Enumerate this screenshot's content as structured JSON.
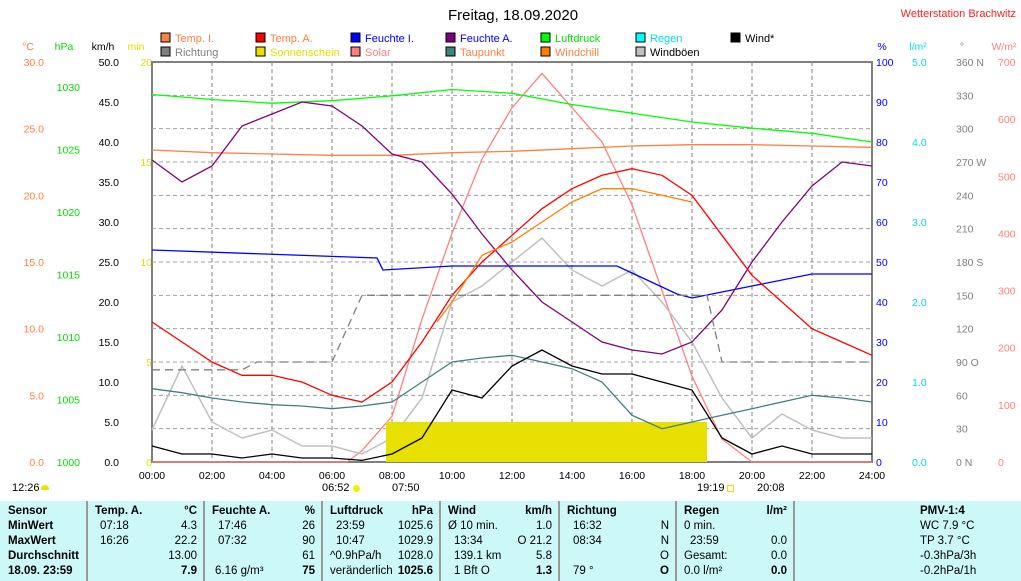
{
  "header": {
    "title": "Freitag, 18.09.2020",
    "station": "Wetterstation Brachwitz"
  },
  "legend": [
    {
      "label": "Temp. I.",
      "color": "#ff8040",
      "text_color": "#ff8040"
    },
    {
      "label": "Temp. A.",
      "color": "#ff0000",
      "text_color": "#ff8040"
    },
    {
      "label": "Feuchte I.",
      "color": "#0000ff",
      "text_color": "#0000ff"
    },
    {
      "label": "Feuchte A.",
      "color": "#800080",
      "text_color": "#0000ff"
    },
    {
      "label": "Luftdruck",
      "color": "#00ff00",
      "text_color": "#00e000"
    },
    {
      "label": "Regen",
      "color": "#00ffff",
      "text_color": "#00e0e0"
    },
    {
      "label": "Wind*",
      "color": "#000000",
      "text_color": "#000000"
    },
    {
      "label": "Richtung",
      "color": "#808080",
      "text_color": "#808080"
    },
    {
      "label": "Sonnenschein",
      "color": "#e8e000",
      "text_color": "#e0e000"
    },
    {
      "label": "Solar",
      "color": "#ff8080",
      "text_color": "#ff8080"
    },
    {
      "label": "Taupunkt",
      "color": "#408080",
      "text_color": "#ff8040"
    },
    {
      "label": "Windchill",
      "color": "#ff8000",
      "text_color": "#ff8040"
    },
    {
      "label": "Windböen",
      "color": "#c0c0c0",
      "text_color": "#000000"
    }
  ],
  "chart_data": {
    "type": "line",
    "title": "Freitag, 18.09.2020",
    "x_ticks": [
      "00:00",
      "02:00",
      "04:00",
      "06:00",
      "08:00",
      "10:00",
      "12:00",
      "14:00",
      "16:00",
      "18:00",
      "20:00",
      "22:00",
      "24:00"
    ],
    "xlim": [
      0,
      24
    ],
    "axes": [
      {
        "unit": "°C",
        "color": "#ff8040",
        "range": [
          0,
          30
        ],
        "ticks": [
          "0.0",
          "5.0",
          "10.0",
          "15.0",
          "20.0",
          "25.0",
          "30.0"
        ]
      },
      {
        "unit": "hPa",
        "color": "#00e000",
        "range": [
          1000,
          1032
        ],
        "ticks": [
          "1000",
          "1005",
          "1010",
          "1015",
          "1020",
          "1025",
          "1030"
        ]
      },
      {
        "unit": "km/h",
        "color": "#000000",
        "range": [
          0,
          50
        ],
        "ticks": [
          "0.0",
          "5.0",
          "10.0",
          "15.0",
          "20.0",
          "25.0",
          "30.0",
          "35.0",
          "40.0",
          "45.0",
          "50.0"
        ]
      },
      {
        "unit": "min",
        "color": "#e0e000",
        "range": [
          0,
          20
        ],
        "ticks": [
          "0",
          "5",
          "10",
          "15",
          "20"
        ]
      },
      {
        "unit": "%",
        "color": "#0000ff",
        "range": [
          0,
          100
        ],
        "ticks": [
          "0",
          "10",
          "20",
          "30",
          "40",
          "50",
          "60",
          "70",
          "80",
          "90",
          "100"
        ]
      },
      {
        "unit": "l/m²",
        "color": "#00e0e0",
        "range": [
          0,
          5
        ],
        "ticks": [
          "0.0",
          "1.0",
          "2.0",
          "3.0",
          "4.0",
          "5.0"
        ]
      },
      {
        "unit": "°",
        "color": "#808080",
        "range": [
          0,
          360
        ],
        "ticks": [
          "0 N",
          "30",
          "60",
          "90 O",
          "120",
          "150",
          "180 S",
          "210",
          "240",
          "270 W",
          "300",
          "330",
          "360 N"
        ]
      },
      {
        "unit": "W/m²",
        "color": "#ff8080",
        "range": [
          0,
          700
        ],
        "ticks": [
          "0",
          "100",
          "200",
          "300",
          "400",
          "500",
          "600",
          "700"
        ]
      }
    ],
    "series": [
      {
        "name": "Solar",
        "axis": 7,
        "color": "#ff8080",
        "x": [
          0,
          6.5,
          7,
          8,
          9,
          10,
          11,
          12,
          13,
          14,
          15,
          16,
          17,
          18,
          19,
          20,
          24
        ],
        "y": [
          0,
          0,
          20,
          80,
          250,
          400,
          530,
          620,
          680,
          620,
          560,
          450,
          300,
          150,
          40,
          0,
          0
        ]
      },
      {
        "name": "Windböen",
        "axis": 2,
        "color": "#c0c0c0",
        "x": [
          0,
          1,
          2,
          3,
          4,
          5,
          6,
          7,
          8,
          9,
          10,
          11,
          12,
          13,
          14,
          15,
          16,
          17,
          18,
          19,
          20,
          21,
          22,
          23,
          24
        ],
        "y": [
          4,
          12,
          5,
          3,
          4,
          2,
          2,
          1,
          3,
          8,
          20,
          22,
          25,
          28,
          24,
          22,
          24,
          20,
          15,
          8,
          3,
          6,
          4,
          3,
          3
        ]
      },
      {
        "name": "Sonnenschein",
        "axis": 3,
        "color": "#e8e000",
        "x": [
          7.8,
          18.5
        ],
        "y": [
          2,
          2
        ]
      },
      {
        "name": "Temp. I.",
        "axis": 0,
        "color": "#ff8040",
        "x": [
          0,
          2,
          4,
          6,
          8,
          10,
          12,
          14,
          16,
          18,
          20,
          22,
          24
        ],
        "y": [
          23.4,
          23.2,
          23.1,
          23.0,
          23.0,
          23.2,
          23.3,
          23.5,
          23.7,
          23.8,
          23.8,
          23.7,
          23.6
        ]
      },
      {
        "name": "Luftdruck",
        "axis": 1,
        "color": "#00ff00",
        "x": [
          0,
          2,
          4,
          6,
          8,
          10,
          12,
          14,
          16,
          18,
          20,
          22,
          24
        ],
        "y": [
          1029.4,
          1029.0,
          1028.7,
          1028.9,
          1029.3,
          1029.8,
          1029.5,
          1028.6,
          1027.9,
          1027.2,
          1026.7,
          1026.3,
          1025.6
        ]
      },
      {
        "name": "Feuchte I.",
        "axis": 4,
        "color": "#0000ff",
        "x": [
          0,
          7.5,
          7.7,
          10,
          15.5,
          17.5,
          18,
          20,
          22,
          24
        ],
        "y": [
          53,
          51,
          48,
          49,
          49,
          42,
          41,
          44,
          47,
          47
        ]
      },
      {
        "name": "Feuchte A.",
        "axis": 4,
        "color": "#800080",
        "x": [
          0,
          1,
          2,
          3,
          4,
          5,
          6,
          7,
          8,
          9,
          10,
          11,
          12,
          13,
          14,
          15,
          16,
          17,
          18,
          19,
          20,
          21,
          22,
          23,
          24
        ],
        "y": [
          75.5,
          70,
          74,
          84,
          87,
          90,
          89,
          84,
          77,
          75,
          67,
          57,
          48,
          40,
          35,
          30,
          28,
          27,
          30,
          38,
          50,
          60,
          69,
          75,
          74
        ]
      },
      {
        "name": "Temp. A.",
        "axis": 0,
        "color": "#ff0000",
        "x": [
          0,
          1,
          2,
          3,
          4,
          5,
          6,
          7,
          8,
          9,
          10,
          11,
          12,
          13,
          14,
          15,
          16,
          17,
          18,
          19,
          20,
          21,
          22,
          23,
          24
        ],
        "y": [
          10.5,
          9,
          7.5,
          6.5,
          6.5,
          6,
          5,
          4.5,
          6,
          9,
          12.5,
          15,
          17,
          19,
          20.5,
          21.5,
          22,
          21.5,
          20,
          17,
          14,
          12,
          10,
          9,
          8
        ]
      },
      {
        "name": "Windchill",
        "axis": 0,
        "color": "#ff8000",
        "x": [
          9.5,
          10,
          11,
          12,
          13,
          14,
          15,
          16,
          17,
          18
        ],
        "y": [
          10.5,
          12,
          15.5,
          16.5,
          18,
          19.5,
          20.5,
          20.5,
          20,
          19.5
        ]
      },
      {
        "name": "Taupunkt",
        "axis": 0,
        "color": "#408080",
        "x": [
          0,
          1,
          2,
          3,
          4,
          5,
          6,
          7,
          8,
          9,
          10,
          11,
          12,
          13,
          14,
          15,
          16,
          17,
          18,
          19,
          20,
          21,
          22,
          23,
          24
        ],
        "y": [
          5.5,
          5.2,
          4.8,
          4.5,
          4.3,
          4.2,
          4.0,
          4.2,
          4.5,
          6,
          7.5,
          7.8,
          8,
          7.5,
          7,
          6,
          3.5,
          2.5,
          3,
          3.5,
          4,
          4.5,
          5,
          4.8,
          4.5
        ]
      },
      {
        "name": "Wind*",
        "axis": 2,
        "color": "#000000",
        "x": [
          0,
          1,
          2,
          3,
          4,
          5,
          6,
          7,
          8,
          9,
          10,
          11,
          12,
          13,
          14,
          15,
          16,
          17,
          18,
          19,
          20,
          21,
          22,
          23,
          24
        ],
        "y": [
          2,
          1,
          1,
          0.5,
          1,
          0.5,
          0.5,
          0.2,
          1,
          3,
          9,
          8,
          12,
          14,
          12,
          11,
          11,
          10,
          9,
          3,
          1,
          2,
          1,
          1,
          1
        ]
      },
      {
        "name": "Richtung",
        "axis": 6,
        "color": "#808080",
        "dashed": true,
        "x": [
          0,
          3,
          3.5,
          6,
          7,
          7.5,
          18.5,
          19,
          24
        ],
        "y": [
          83,
          83,
          90,
          90,
          150,
          150,
          150,
          90,
          90
        ]
      }
    ]
  },
  "astro": {
    "moonset": "12:26",
    "sunrise": "06:52",
    "dawn": "07:50",
    "sunset": "19:19",
    "dusk": "20:08"
  },
  "table": {
    "rows": [
      "Sensor",
      "MinWert",
      "MaxWert",
      "Durchschnitt",
      "18.09. 23:59"
    ],
    "temp": {
      "head": "Temp. A.",
      "unit": "°C",
      "min_t": "07:18",
      "min": "4.3",
      "max_t": "16:26",
      "max": "22.2",
      "avg": "13.00",
      "cur": "7.9"
    },
    "hum": {
      "head": "Feuchte A.",
      "unit": "%",
      "min_t": "17:46",
      "min": "26",
      "max_t": "07:32",
      "max": "90",
      "avg": "61",
      "abs": "6.16 g/m³",
      "cur": "75"
    },
    "press": {
      "head": "Luftdruck",
      "unit": "hPa",
      "min_t": "23:59",
      "min": "1025.6",
      "max_t": "10:47",
      "max": "1029.9",
      "trend": "^0.9hPa/h",
      "avg": "1028.0",
      "desc": "veränderlich",
      "cur": "1025.6"
    },
    "wind": {
      "head": "Wind",
      "unit": "km/h",
      "r1a": "Ø 10 min.",
      "r1b": "1.0",
      "r2a": "13:34",
      "r2b": "O 21.2",
      "r3a": "139.1 km",
      "r3b": "5.8",
      "r4a": "1 Bft O",
      "r4b": "1.3"
    },
    "dir": {
      "head": "Richtung",
      "r1a": "16:32",
      "r1b": "N",
      "r2a": "08:34",
      "r2b": "N",
      "r3b": "O",
      "r4a": "79 °",
      "r4b": "O"
    },
    "rain": {
      "head": "Regen",
      "unit": "l/m²",
      "r1a": "0 min.",
      "r2a": "23:59",
      "r2b": "0.0",
      "r3a": "Gesamt:",
      "r3b": "0.0",
      "r4a": "0.0 l/m²",
      "r4b": "0.0"
    },
    "pmv": {
      "head": "PMV-1:4",
      "r1": "WC 7.9 °C",
      "r2": "TP 3.7 °C",
      "r3": "-0.3hPa/3h",
      "r4": "-0.2hPa/1h"
    }
  }
}
